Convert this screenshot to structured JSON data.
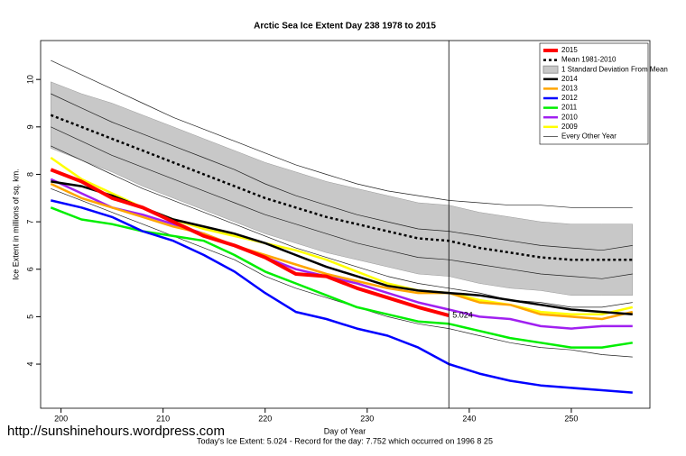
{
  "chart_data": {
    "type": "line",
    "title": "Arctic Sea Ice Extent Day 238 1978 to 2015",
    "x_label": "Day of Year",
    "y_label": "Ice Extent in millions of sq. km.",
    "footer": "Today's Ice Extent: 5.024  -  Record for the day: 7.752 which occurred on 1996 8 25",
    "watermark": "http://sunshinehours.wordpress.com",
    "x": [
      199,
      202,
      205,
      208,
      211,
      214,
      217,
      220,
      223,
      226,
      229,
      232,
      235,
      238,
      241,
      244,
      247,
      250,
      253,
      256
    ],
    "xlim": [
      198,
      257.7
    ],
    "xticks": [
      200,
      210,
      220,
      230,
      240,
      250
    ],
    "ylim": [
      3.07,
      10.82
    ],
    "yticks": [
      4,
      5,
      6,
      7,
      8,
      9,
      10
    ],
    "marker_x": 238,
    "annotation": {
      "text": "5.024",
      "x": 238,
      "y": 5.024,
      "color": "#e00000"
    },
    "series": [
      {
        "name": "2015",
        "color": "#ff0000",
        "width": 4,
        "values": [
          8.1,
          7.85,
          7.5,
          7.3,
          7.0,
          6.7,
          6.5,
          6.25,
          5.9,
          5.85,
          5.6,
          5.4,
          5.2,
          5.024,
          null,
          null,
          null,
          null,
          null,
          null
        ]
      },
      {
        "name": "Mean 1981-2010",
        "color": "#000000",
        "width": 2.5,
        "dash": "3,3",
        "values": [
          9.25,
          9.0,
          8.75,
          8.5,
          8.25,
          8.0,
          7.75,
          7.5,
          7.3,
          7.1,
          6.95,
          6.8,
          6.65,
          6.6,
          6.45,
          6.35,
          6.25,
          6.2,
          6.2,
          6.2
        ]
      },
      {
        "name": "1 Standard Deviation From Mean",
        "color": "#c8c8c8",
        "band": true,
        "upper": [
          9.95,
          9.7,
          9.5,
          9.25,
          9.0,
          8.75,
          8.5,
          8.25,
          8.05,
          7.85,
          7.7,
          7.55,
          7.4,
          7.35,
          7.2,
          7.1,
          7.0,
          6.95,
          6.95,
          6.95
        ],
        "lower": [
          8.55,
          8.3,
          8.05,
          7.75,
          7.5,
          7.25,
          7.0,
          6.75,
          6.55,
          6.35,
          6.2,
          6.05,
          5.9,
          5.85,
          5.7,
          5.6,
          5.55,
          5.45,
          5.45,
          5.45
        ]
      },
      {
        "name": "2014",
        "color": "#000000",
        "width": 2.5,
        "values": [
          7.85,
          7.75,
          7.55,
          7.3,
          7.05,
          6.9,
          6.75,
          6.55,
          6.3,
          6.05,
          5.85,
          5.65,
          5.55,
          5.5,
          5.45,
          5.35,
          5.25,
          5.15,
          5.1,
          5.05
        ]
      },
      {
        "name": "2013",
        "color": "#ffa500",
        "width": 2.5,
        "values": [
          7.8,
          7.5,
          7.3,
          7.1,
          6.9,
          6.75,
          6.5,
          6.3,
          6.1,
          5.9,
          5.75,
          5.6,
          5.5,
          5.5,
          5.3,
          5.25,
          5.05,
          5.0,
          4.95,
          5.1
        ]
      },
      {
        "name": "2012",
        "color": "#0000ff",
        "width": 2.5,
        "values": [
          7.45,
          7.3,
          7.1,
          6.8,
          6.6,
          6.3,
          5.95,
          5.5,
          5.1,
          4.95,
          4.75,
          4.6,
          4.35,
          4.0,
          3.8,
          3.65,
          3.55,
          3.5,
          3.45,
          3.4
        ]
      },
      {
        "name": "2011",
        "color": "#00ee00",
        "width": 2.5,
        "values": [
          7.3,
          7.05,
          6.95,
          6.8,
          6.7,
          6.6,
          6.3,
          5.95,
          5.7,
          5.45,
          5.2,
          5.05,
          4.9,
          4.85,
          4.7,
          4.55,
          4.45,
          4.35,
          4.35,
          4.45
        ]
      },
      {
        "name": "2010",
        "color": "#a020f0",
        "width": 2.5,
        "values": [
          7.9,
          7.6,
          7.3,
          7.15,
          6.95,
          6.75,
          6.5,
          6.25,
          6.0,
          5.85,
          5.7,
          5.5,
          5.3,
          5.15,
          5.0,
          4.95,
          4.8,
          4.75,
          4.8,
          4.8
        ]
      },
      {
        "name": "2009",
        "color": "#ffff00",
        "width": 2.5,
        "values": [
          8.35,
          7.9,
          7.6,
          7.3,
          7.05,
          6.85,
          6.7,
          6.55,
          6.4,
          6.2,
          5.95,
          5.7,
          5.55,
          5.5,
          5.35,
          5.25,
          5.1,
          5.05,
          5.05,
          5.2
        ]
      },
      {
        "name": "Every Other Year",
        "color": "#222222",
        "width": 0.7,
        "lines": [
          [
            10.4,
            10.1,
            9.8,
            9.5,
            9.2,
            8.95,
            8.7,
            8.45,
            8.2,
            8.0,
            7.8,
            7.65,
            7.55,
            7.45,
            7.4,
            7.35,
            7.35,
            7.3,
            7.3,
            7.3
          ],
          [
            9.7,
            9.4,
            9.1,
            8.85,
            8.6,
            8.35,
            8.1,
            7.8,
            7.55,
            7.35,
            7.15,
            7.0,
            6.85,
            6.8,
            6.7,
            6.6,
            6.5,
            6.45,
            6.4,
            6.5
          ],
          [
            9.0,
            8.7,
            8.4,
            8.15,
            7.9,
            7.65,
            7.4,
            7.15,
            6.95,
            6.75,
            6.55,
            6.4,
            6.25,
            6.2,
            6.1,
            6.0,
            5.9,
            5.85,
            5.8,
            5.9
          ],
          [
            8.6,
            8.3,
            8.0,
            7.7,
            7.45,
            7.2,
            6.95,
            6.7,
            6.45,
            6.25,
            6.05,
            5.85,
            5.7,
            5.6,
            5.5,
            5.35,
            5.3,
            5.2,
            5.2,
            5.3
          ],
          [
            7.7,
            7.45,
            7.2,
            6.95,
            6.7,
            6.45,
            6.2,
            5.85,
            5.6,
            5.4,
            5.2,
            5.0,
            4.85,
            4.75,
            4.6,
            4.45,
            4.35,
            4.3,
            4.2,
            4.15
          ]
        ]
      }
    ]
  }
}
